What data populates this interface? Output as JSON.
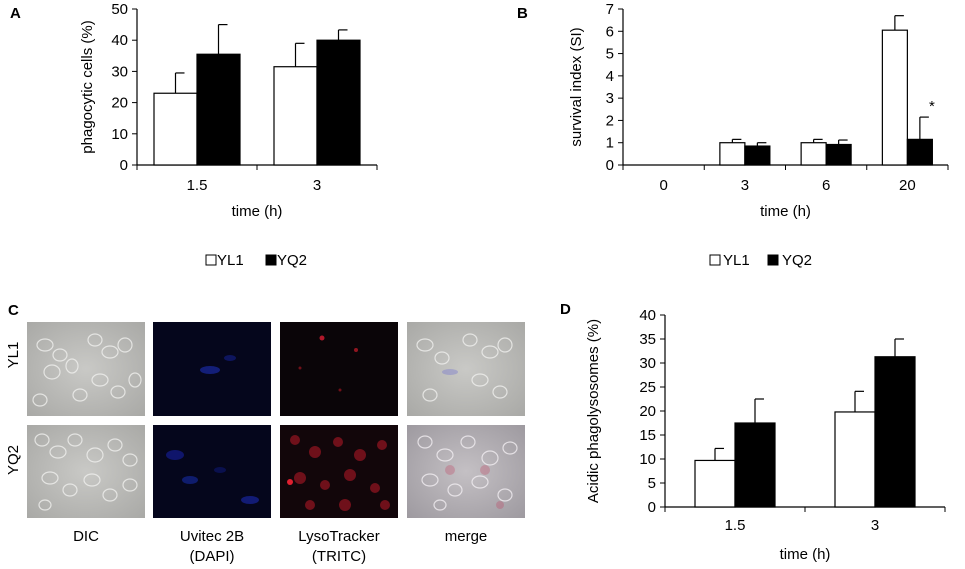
{
  "chart_data": [
    {
      "panel": "A",
      "type": "bar",
      "categories": [
        "1.5",
        "3"
      ],
      "series": [
        {
          "name": "YL1",
          "values": [
            23,
            31.5
          ],
          "errors": [
            6.5,
            7.5
          ],
          "fill": "#ffffff"
        },
        {
          "name": "YQ2",
          "values": [
            35.5,
            40
          ],
          "errors": [
            9.5,
            3.3
          ],
          "fill": "#000000"
        }
      ],
      "xlabel": "time (h)",
      "ylabel": "phagocytic cells (%)",
      "ylim": [
        0,
        50
      ],
      "yticks": [
        "0",
        "10",
        "20",
        "30",
        "40",
        "50"
      ],
      "legend": "bottom"
    },
    {
      "panel": "B",
      "type": "bar",
      "categories": [
        "0",
        "3",
        "6",
        "20"
      ],
      "series": [
        {
          "name": "YL1",
          "values": [
            0,
            1.0,
            1.0,
            6.05
          ],
          "errors": [
            0,
            0.15,
            0.15,
            0.65
          ],
          "fill": "#ffffff"
        },
        {
          "name": "YQ2",
          "values": [
            0,
            0.85,
            0.92,
            1.15
          ],
          "errors": [
            0,
            0.15,
            0.2,
            1.0
          ],
          "fill": "#000000"
        }
      ],
      "annotations": [
        "*"
      ],
      "xlabel": "time (h)",
      "ylabel": "survival index (SI)",
      "ylim": [
        0,
        7
      ],
      "yticks": [
        "0",
        "1",
        "2",
        "3",
        "4",
        "5",
        "6",
        "7"
      ],
      "legend": "bottom"
    },
    {
      "panel": "D",
      "type": "bar",
      "categories": [
        "1.5",
        "3"
      ],
      "series": [
        {
          "name": "YL1",
          "values": [
            9.7,
            19.8
          ],
          "errors": [
            2.5,
            4.3
          ],
          "fill": "#ffffff"
        },
        {
          "name": "YQ2",
          "values": [
            17.5,
            31.3
          ],
          "errors": [
            5,
            3.7
          ],
          "fill": "#000000"
        }
      ],
      "xlabel": "time (h)",
      "ylabel": "Acidic phagolysosomes (%)",
      "ylim": [
        0,
        40
      ],
      "yticks": [
        "0",
        "5",
        "10",
        "15",
        "20",
        "25",
        "30",
        "35",
        "40"
      ]
    }
  ],
  "panels": {
    "a": "A",
    "b": "B",
    "c": "C",
    "d": "D"
  },
  "micrographs": {
    "rows": [
      "YL1",
      "YQ2"
    ],
    "columns": [
      {
        "line1": "DIC",
        "line2": ""
      },
      {
        "line1": "Uvitec 2B",
        "line2": "(DAPI)"
      },
      {
        "line1": "LysoTracker",
        "line2": "(TRITC)"
      },
      {
        "line1": "merge",
        "line2": ""
      }
    ]
  },
  "legend": {
    "yl1": "YL1",
    "yq2": "YQ2"
  }
}
